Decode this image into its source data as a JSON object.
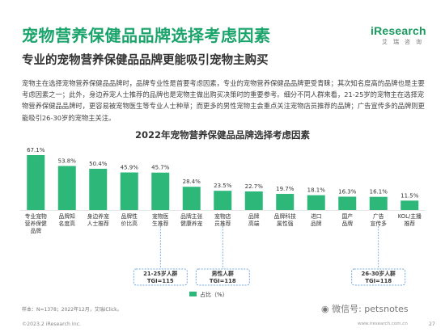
{
  "header": {
    "title": "宠物营养保健品品牌选择考虑因素",
    "subtitle": "专业的宠物营养保健品品牌更能吸引宠物主购买",
    "logo_text": "iResearch",
    "logo_cn": "艾瑞咨询"
  },
  "paragraph": "宠物主在选择宠物营养保健品品牌时，品牌专业性是首要考虑因素，专业的宠物营养保健品品牌更受青睐；其次知名度高的品牌也是主要考虑因素之一；此外，身边养宠人士推荐的品牌也是宠物主做出购买决策时的重要参考。细分不同人群来看，21-25岁的宠物主在选择宠物营养保健品品牌时，更容易被宠物医生等专业人士种草；而更多的男性宠物主会重点关注宠物店员推荐的品牌；广告宣传多的品牌则更能吸引26-30岁的宠物主关注。",
  "colors": {
    "bar": "#2db87a",
    "title": "#1aa36a",
    "callout_border": "#4a90d9"
  },
  "chart_data": {
    "type": "bar",
    "title": "2022年宠物营养保健品品牌选择考虑因素",
    "categories": [
      "专业宠物营养保健品牌",
      "品牌知名度高",
      "身边养宠人士推荐",
      "品牌性价比高",
      "宠物医生推荐",
      "品牌主张健康养宠",
      "宠物店员推荐",
      "品牌高端",
      "品牌科技属性强",
      "进口品牌",
      "国产品牌",
      "广告宣传多",
      "KOL/主播推荐"
    ],
    "values": [
      67.1,
      53.8,
      50.4,
      45.9,
      45.7,
      28.4,
      23.5,
      22.7,
      19.7,
      18.1,
      16.3,
      16.1,
      11.5
    ],
    "value_labels": [
      "67.1%",
      "53.8%",
      "50.4%",
      "45.9%",
      "45.7%",
      "28.4%",
      "23.5%",
      "22.7%",
      "19.7%",
      "18.1%",
      "16.3%",
      "16.1%",
      "11.5%"
    ],
    "category_lines": [
      [
        "专业宠物",
        "营养保健",
        "品牌"
      ],
      [
        "品牌知",
        "名度高"
      ],
      [
        "身边养宠",
        "人士推荐"
      ],
      [
        "品牌性",
        "价比高"
      ],
      [
        "宠物医",
        "生推荐"
      ],
      [
        "品牌主张",
        "健康养宠"
      ],
      [
        "宠物店",
        "员推荐"
      ],
      [
        "品牌",
        "高端"
      ],
      [
        "品牌科技",
        "属性强"
      ],
      [
        "进口",
        "品牌"
      ],
      [
        "国产",
        "品牌"
      ],
      [
        "广告",
        "宣传多"
      ],
      [
        "KOL/主播",
        "推荐"
      ]
    ],
    "legend": "占比（%）",
    "ylim": [
      0,
      75
    ],
    "grid": false,
    "annotations": [
      {
        "group": "21-25岁人群",
        "tgi": "TGI=115"
      },
      {
        "group": "男性人群",
        "tgi": "TGI=118"
      },
      {
        "group": "26-30岁人群",
        "tgi": "TGI=118"
      }
    ]
  },
  "footer": {
    "source": "样本：N=1378；2022年12月，艾瑞iClick。",
    "copyright": "©2023.2 iResearch Inc.",
    "site": "www.iresearch.com.cn",
    "watermark": "微信号: petsnotes",
    "page": "27"
  }
}
